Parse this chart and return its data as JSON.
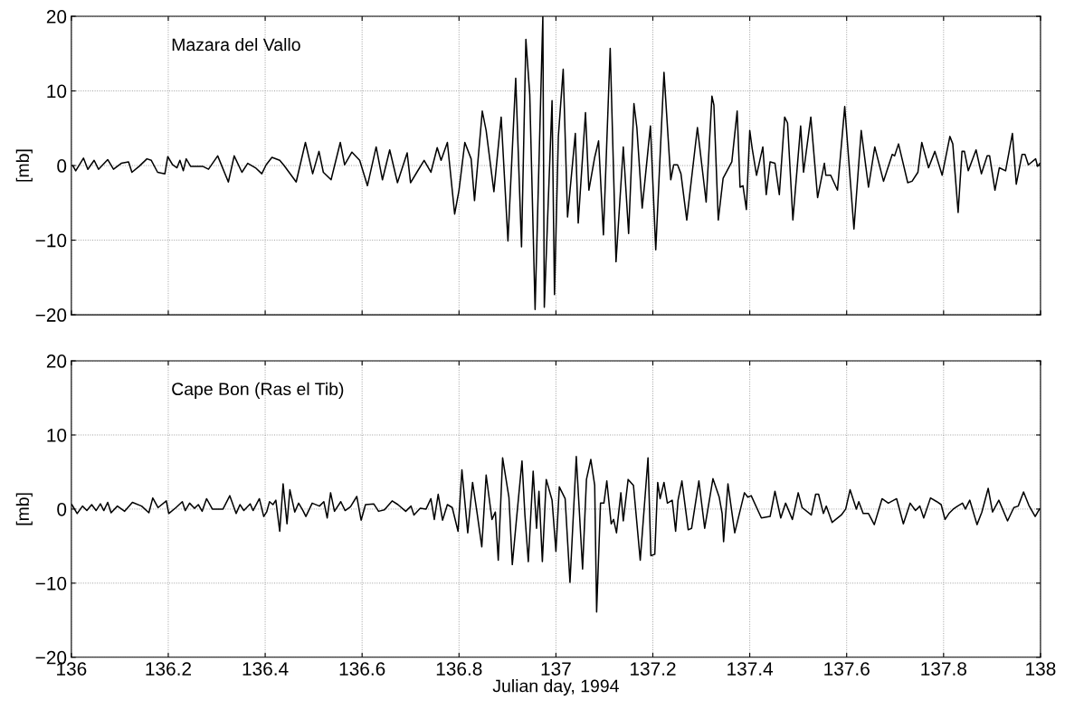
{
  "chart_data": [
    {
      "type": "line",
      "title": "Mazara del Vallo",
      "ylabel": "[mb]",
      "xlim": [
        136,
        138
      ],
      "ylim": [
        -20,
        20
      ],
      "xticks": [
        136,
        136.2,
        136.4,
        136.6,
        136.8,
        137,
        137.2,
        137.4,
        137.6,
        137.8,
        138
      ],
      "yticks": [
        -20,
        -10,
        0,
        10,
        20
      ],
      "grid": true,
      "tick_labels": "y",
      "line_style": "solid",
      "marker": "none",
      "series": [
        {
          "color": "#000000",
          "x": [
            136.003,
            136.009,
            136.025,
            136.034,
            136.047,
            136.056,
            136.075,
            136.087,
            136.103,
            136.118,
            136.125,
            136.14,
            136.156,
            136.165,
            136.178,
            136.193,
            136.199,
            136.209,
            136.218,
            136.224,
            136.231,
            136.237,
            136.246,
            136.271,
            136.283,
            136.302,
            136.324,
            136.336,
            136.352,
            136.364,
            136.38,
            136.393,
            136.402,
            136.414,
            136.43,
            136.439,
            136.464,
            136.483,
            136.498,
            136.511,
            136.52,
            136.536,
            136.555,
            136.564,
            136.579,
            136.595,
            136.611,
            136.629,
            136.642,
            136.657,
            136.673,
            136.693,
            136.7,
            136.713,
            136.728,
            136.742,
            136.755,
            136.763,
            136.776,
            136.791,
            136.8,
            136.812,
            136.825,
            136.832,
            136.848,
            136.856,
            136.872,
            136.887,
            136.901,
            136.917,
            136.929,
            136.938,
            136.946,
            136.957,
            136.973,
            136.976,
            136.992,
            136.997,
            137.005,
            137.015,
            137.024,
            137.04,
            137.046,
            137.061,
            137.068,
            137.08,
            137.088,
            137.098,
            137.112,
            137.124,
            137.139,
            137.15,
            137.161,
            137.167,
            137.178,
            137.195,
            137.206,
            137.223,
            137.237,
            137.243,
            137.251,
            137.258,
            137.27,
            137.292,
            137.31,
            137.322,
            137.326,
            137.335,
            137.345,
            137.363,
            137.374,
            137.38,
            137.386,
            137.393,
            137.4,
            137.405,
            137.414,
            137.427,
            137.434,
            137.442,
            137.452,
            137.461,
            137.472,
            137.478,
            137.489,
            137.505,
            137.511,
            137.526,
            137.54,
            137.554,
            137.557,
            137.567,
            137.581,
            137.596,
            137.615,
            137.63,
            137.645,
            137.658,
            137.676,
            137.694,
            137.699,
            137.707,
            137.726,
            137.735,
            137.747,
            137.755,
            137.769,
            137.782,
            137.797,
            137.813,
            137.819,
            137.83,
            137.838,
            137.843,
            137.851,
            137.867,
            137.878,
            137.89,
            137.895,
            137.906,
            137.915,
            137.928,
            137.942,
            137.95,
            137.962,
            137.968,
            137.975,
            137.99,
            137.994,
            137.999
          ],
          "values": [
            0,
            -0.7,
            1,
            -0.5,
            0.7,
            -0.5,
            0.8,
            -0.5,
            0.3,
            0.5,
            -0.9,
            -0.1,
            0.9,
            0.7,
            -0.9,
            -1.1,
            1.2,
            0.1,
            -0.3,
            0.7,
            -0.7,
            0.9,
            -0.1,
            -0.1,
            -0.5,
            1.3,
            -2.2,
            1.3,
            -0.9,
            0.3,
            -0.3,
            -1.1,
            0.1,
            1.1,
            0.7,
            0,
            -2.2,
            3.1,
            -1.1,
            1.9,
            -0.9,
            -1.9,
            3.1,
            0.1,
            1.8,
            0.7,
            -2.7,
            2.5,
            -1.9,
            2.1,
            -2.3,
            1.7,
            -2.3,
            -0.9,
            0.7,
            -0.9,
            2.4,
            0.7,
            3.1,
            -6.5,
            -3.3,
            3.1,
            0.9,
            -4.7,
            7.3,
            4.7,
            -3.5,
            6.5,
            -10.1,
            11.7,
            -10.9,
            16.9,
            9.5,
            -19.3,
            20,
            -19,
            8.7,
            -17.3,
            3.9,
            12.9,
            -6.9,
            4.3,
            -7.7,
            7.1,
            -3.3,
            1.1,
            3.3,
            -9.3,
            15.7,
            -12.9,
            2.5,
            -9.1,
            8.3,
            5.1,
            -5.7,
            5.3,
            -11.3,
            12.5,
            -1.9,
            0.1,
            0.1,
            -1.1,
            -7.3,
            5.1,
            -4.9,
            9.3,
            8.1,
            -7.3,
            -1.7,
            0.5,
            7.3,
            -2.9,
            -2.7,
            -5.9,
            4.7,
            2.3,
            -1.3,
            2.5,
            -3.9,
            0.5,
            0.3,
            -3.9,
            6.5,
            5.7,
            -7.3,
            5.3,
            -0.9,
            6.5,
            -4.3,
            0.3,
            -1.3,
            -1.3,
            -3.3,
            7.9,
            -8.5,
            4.7,
            -2.9,
            2.5,
            -2.1,
            1.5,
            1.3,
            2.9,
            -2.3,
            -2.1,
            -0.9,
            3.1,
            -0.3,
            1.9,
            -1.3,
            3.9,
            2.9,
            -6.3,
            1.9,
            1.9,
            -0.7,
            2.1,
            -1.1,
            1.3,
            1.3,
            -3.3,
            -0.3,
            -0.7,
            4.3,
            -2.5,
            1.5,
            1.5,
            0.1,
            0.9,
            -0.1,
            0.3
          ]
        }
      ]
    },
    {
      "type": "line",
      "title": "Cape Bon (Ras el Tib)",
      "xlabel": "Julian day, 1994",
      "ylabel": "[mb]",
      "xlim": [
        136,
        138
      ],
      "ylim": [
        -20,
        20
      ],
      "xticks": [
        136,
        136.2,
        136.4,
        136.6,
        136.8,
        137,
        137.2,
        137.4,
        137.6,
        137.8,
        138
      ],
      "yticks": [
        -20,
        -10,
        0,
        10,
        20
      ],
      "grid": true,
      "line_style": "solid",
      "marker": "none",
      "series": [
        {
          "color": "#000000",
          "x": [
            136.001,
            136.012,
            136.023,
            136.032,
            136.042,
            136.051,
            136.06,
            136.067,
            136.075,
            136.082,
            136.095,
            136.11,
            136.126,
            136.145,
            136.16,
            136.168,
            136.179,
            136.196,
            136.201,
            136.216,
            136.229,
            136.235,
            136.244,
            136.254,
            136.262,
            136.27,
            136.279,
            136.291,
            136.313,
            136.327,
            136.34,
            136.348,
            136.356,
            136.369,
            136.375,
            136.388,
            136.397,
            136.403,
            136.409,
            136.416,
            136.422,
            136.43,
            136.437,
            136.445,
            136.451,
            136.461,
            136.469,
            136.478,
            136.484,
            136.497,
            136.512,
            136.521,
            136.528,
            136.535,
            136.543,
            136.556,
            136.565,
            136.576,
            136.589,
            136.598,
            136.607,
            136.624,
            136.634,
            136.646,
            136.662,
            136.674,
            136.69,
            136.701,
            136.707,
            136.72,
            136.732,
            136.742,
            136.749,
            136.757,
            136.766,
            136.776,
            136.786,
            136.798,
            136.806,
            136.818,
            136.828,
            136.837,
            136.847,
            136.856,
            136.868,
            136.875,
            136.881,
            136.89,
            136.903,
            136.91,
            136.918,
            136.93,
            136.936,
            136.943,
            136.953,
            136.96,
            136.965,
            136.972,
            136.98,
            136.992,
            137.0,
            137.007,
            137.019,
            137.029,
            137.042,
            137.055,
            137.063,
            137.072,
            137.08,
            137.084,
            137.092,
            137.099,
            137.105,
            137.114,
            137.119,
            137.125,
            137.134,
            137.139,
            137.149,
            137.16,
            137.174,
            137.19,
            137.196,
            137.204,
            137.21,
            137.215,
            137.223,
            137.23,
            137.24,
            137.247,
            137.252,
            137.26,
            137.273,
            137.28,
            137.295,
            137.307,
            137.324,
            137.337,
            137.343,
            137.346,
            137.355,
            137.369,
            137.389,
            137.396,
            137.403,
            137.424,
            137.442,
            137.452,
            137.464,
            137.474,
            137.488,
            137.5,
            137.508,
            137.527,
            137.536,
            137.542,
            137.552,
            137.558,
            137.57,
            137.589,
            137.598,
            137.607,
            137.62,
            137.625,
            137.634,
            137.645,
            137.657,
            137.673,
            137.686,
            137.703,
            137.708,
            137.717,
            137.731,
            137.742,
            137.751,
            137.759,
            137.773,
            137.786,
            137.795,
            137.803,
            137.811,
            137.82,
            137.829,
            137.839,
            137.845,
            137.854,
            137.869,
            137.879,
            137.892,
            137.901,
            137.914,
            137.932,
            137.945,
            137.954,
            137.965,
            137.976,
            137.989,
            137.998
          ],
          "values": [
            0.6,
            -0.6,
            0.4,
            -0.2,
            0.6,
            -0.2,
            0.7,
            -0.2,
            0.9,
            -0.5,
            0.4,
            -0.3,
            0.9,
            0.4,
            -0.5,
            1.5,
            0.2,
            1.1,
            -0.6,
            0.2,
            1,
            -0.2,
            0.8,
            0.1,
            0.6,
            -0.3,
            1.4,
            0,
            0,
            1.8,
            -0.6,
            0.6,
            -0.2,
            0.7,
            -0.2,
            1.4,
            -1,
            -0.4,
            1,
            0.6,
            1.2,
            -3,
            3.4,
            -2,
            2.6,
            -0.4,
            0.8,
            -0.2,
            -1,
            0.8,
            0.4,
            1,
            -1.2,
            2.2,
            -0.3,
            1,
            -0.2,
            0.3,
            1.7,
            -1.5,
            0.6,
            0.7,
            -0.3,
            -0.1,
            1.1,
            0.6,
            -0.3,
            0.4,
            -0.8,
            0.1,
            0,
            1.4,
            -1.4,
            2,
            -1.5,
            0.6,
            0.2,
            -3,
            5.3,
            -3.2,
            3.6,
            -0.4,
            -5.1,
            4.6,
            -1.4,
            -0.4,
            -6.9,
            6.9,
            1.6,
            -7.5,
            -1.8,
            6.5,
            -0.8,
            -7.1,
            5.1,
            -2.6,
            2.4,
            -7.1,
            4,
            1.2,
            -5.7,
            3,
            1.4,
            -9.9,
            7.1,
            -8.1,
            4,
            6.7,
            3.2,
            -13.9,
            0.8,
            0.8,
            3.8,
            -2,
            -1.4,
            -3.2,
            2.2,
            -1.6,
            4,
            3.2,
            -6.9,
            6.9,
            -6.3,
            -6.1,
            3.6,
            1.4,
            3.6,
            0.8,
            1.2,
            -3,
            1.2,
            3.8,
            -2.8,
            -2.6,
            3.8,
            -2.6,
            4.1,
            1.6,
            -0.6,
            -4.4,
            3.4,
            -3.2,
            2.2,
            1.6,
            1.8,
            -1.2,
            -1,
            2.4,
            -1.2,
            0.8,
            -1.4,
            2.2,
            0.2,
            -0.8,
            2,
            2,
            -0.6,
            0.4,
            -1.8,
            -0.8,
            0,
            2.6,
            0,
            1,
            -0.6,
            -0.6,
            -2.1,
            1.4,
            0.8,
            1.4,
            0.2,
            -2,
            0.8,
            -0.2,
            0.4,
            -1.2,
            1.5,
            1,
            0.6,
            -1.4,
            -0.6,
            0,
            0.4,
            0.8,
            0,
            1.2,
            -2.1,
            -0.4,
            2.8,
            -0.4,
            1.2,
            -1.6,
            0.2,
            0.4,
            2.3,
            0.5,
            -1,
            0
          ]
        }
      ]
    }
  ]
}
